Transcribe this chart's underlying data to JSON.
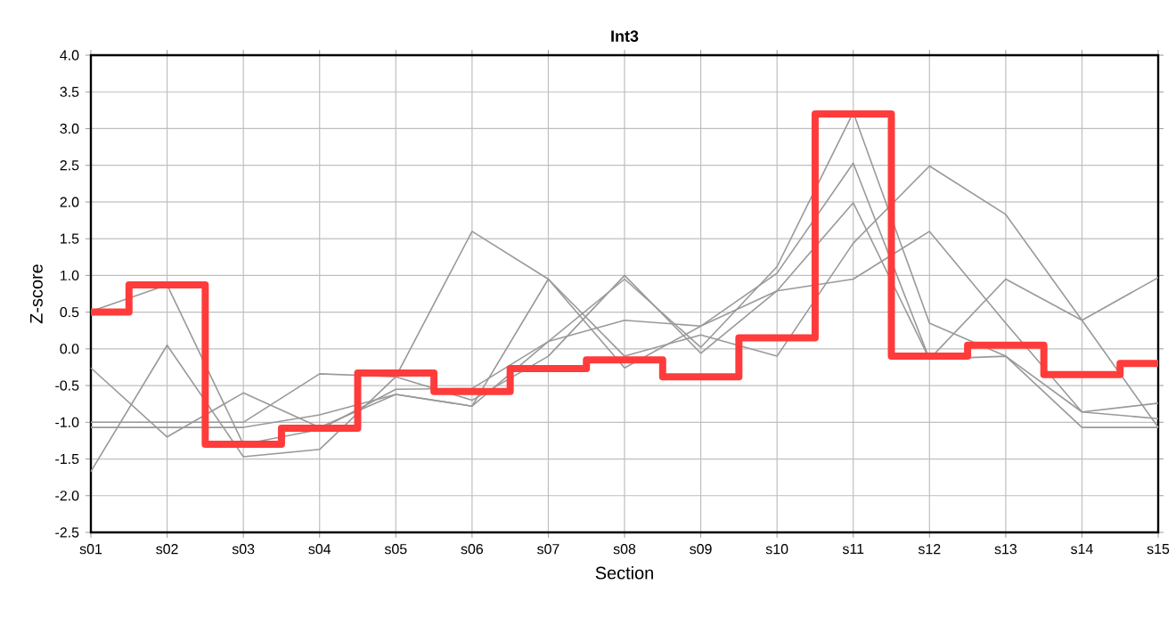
{
  "chart_data": {
    "type": "line",
    "title": "Int3",
    "xlabel": "Section",
    "ylabel": "Z-score",
    "categories": [
      "s01",
      "s02",
      "s03",
      "s04",
      "s05",
      "s06",
      "s07",
      "s08",
      "s09",
      "s10",
      "s11",
      "s12",
      "s13",
      "s14",
      "s15"
    ],
    "ylim": [
      -2.5,
      4.0
    ],
    "yticks": [
      {
        "value": -2.5,
        "label": "-2.5"
      },
      {
        "value": -2.0,
        "label": "-2.0"
      },
      {
        "value": -1.5,
        "label": "-1.5"
      },
      {
        "value": -1.0,
        "label": "-1.0"
      },
      {
        "value": -0.5,
        "label": "-0.5"
      },
      {
        "value": 0.0,
        "label": "0.0"
      },
      {
        "value": 0.5,
        "label": "0.5"
      },
      {
        "value": 1.0,
        "label": "1.0"
      },
      {
        "value": 1.5,
        "label": "1.5"
      },
      {
        "value": 2.0,
        "label": "2.0"
      },
      {
        "value": 2.5,
        "label": "2.5"
      },
      {
        "value": 3.0,
        "label": "3.0"
      },
      {
        "value": 3.5,
        "label": "3.5"
      },
      {
        "value": 4.0,
        "label": "4.0"
      }
    ],
    "grid": true,
    "marker": "none",
    "series": [
      {
        "color": "#999999",
        "values": [
          0.51,
          0.87,
          -1.3,
          -1.1,
          -0.55,
          -0.54,
          0.1,
          0.95,
          0.02,
          1.12,
          3.22,
          0.35,
          -0.1,
          -0.86,
          -0.74
        ]
      },
      {
        "color": "#999999",
        "values": [
          -0.26,
          -1.2,
          -0.6,
          -1.07,
          -0.62,
          -0.78,
          0.95,
          -0.26,
          0.31,
          1.03,
          2.53,
          -0.14,
          0.95,
          0.39,
          0.97
        ]
      },
      {
        "color": "#999999",
        "values": [
          -1.67,
          0.05,
          -1.47,
          -1.37,
          -0.38,
          1.6,
          0.95,
          -0.1,
          0.19,
          -0.1,
          1.44,
          2.49,
          1.83,
          0.39,
          -1.07
        ]
      },
      {
        "color": "#999999",
        "values": [
          -1.0,
          -1.0,
          -1.0,
          -0.34,
          -0.38,
          -0.7,
          -0.1,
          1.0,
          -0.06,
          0.79,
          1.99,
          -0.14,
          -0.1,
          -1.07,
          -1.07
        ]
      },
      {
        "color": "#999999",
        "values": [
          -1.07,
          -1.07,
          -1.07,
          -0.9,
          -0.62,
          -0.78,
          0.1,
          0.39,
          0.31,
          0.79,
          0.95,
          1.6,
          0.35,
          -0.86,
          -0.95
        ]
      },
      {
        "type": "step",
        "color": "#ff3b3b",
        "values": [
          0.5,
          0.87,
          -1.3,
          -1.08,
          -0.33,
          -0.58,
          -0.27,
          -0.15,
          -0.38,
          0.15,
          3.2,
          -0.1,
          0.05,
          -0.35,
          -0.2
        ]
      }
    ]
  }
}
